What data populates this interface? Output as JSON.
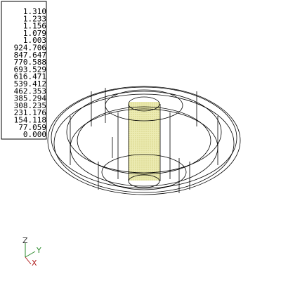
{
  "legend": {
    "values": [
      "1.310",
      "1.233",
      "1.156",
      "1.079",
      "1.003",
      "924.706",
      "847.647",
      "770.588",
      "693.529",
      "616.471",
      "539.412",
      "462.353",
      "385.294",
      "308.235",
      "231.176",
      "154.118",
      "77.059",
      "0.000"
    ]
  },
  "triad": {
    "z": "Z",
    "y": "Y",
    "x": "X"
  }
}
